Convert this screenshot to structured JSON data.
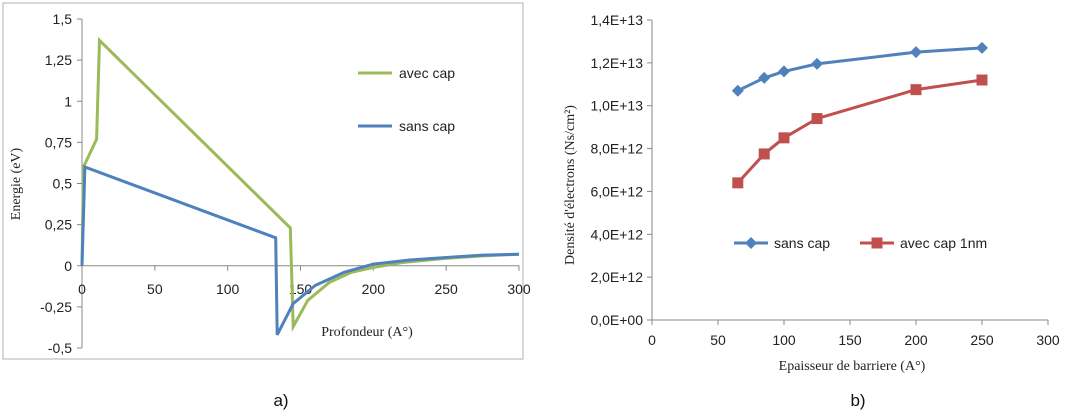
{
  "chart_data": [
    {
      "type": "line",
      "panel_label": "a)",
      "xlabel": "Profondeur (A°)",
      "ylabel": "Energie (eV)",
      "xlim": [
        0,
        300
      ],
      "ylim": [
        -0.5,
        1.5
      ],
      "x_ticks": [
        "0",
        "50",
        "100",
        "150",
        "200",
        "250",
        "300"
      ],
      "y_ticks": [
        "-0,5",
        "-0,25",
        "0",
        "0,25",
        "0,5",
        "0,75",
        "1",
        "1,25",
        "1,5"
      ],
      "grid": false,
      "legend_position": "right",
      "series": [
        {
          "name": "avec cap",
          "color": "#9bbb59",
          "points": [
            [
              0,
              0
            ],
            [
              1,
              0.6
            ],
            [
              10,
              0.77
            ],
            [
              12,
              1.37
            ],
            [
              143,
              0.23
            ],
            [
              145,
              -0.37
            ],
            [
              155,
              -0.21
            ],
            [
              170,
              -0.1
            ],
            [
              185,
              -0.04
            ],
            [
              200,
              -0.01
            ],
            [
              220,
              0.02
            ],
            [
              250,
              0.045
            ],
            [
              275,
              0.06
            ],
            [
              300,
              0.07
            ]
          ]
        },
        {
          "name": "sans cap",
          "color": "#4f81bd",
          "points": [
            [
              0,
              0
            ],
            [
              2,
              0.6
            ],
            [
              133,
              0.17
            ],
            [
              134,
              -0.42
            ],
            [
              145,
              -0.23
            ],
            [
              160,
              -0.12
            ],
            [
              180,
              -0.04
            ],
            [
              200,
              0.01
            ],
            [
              225,
              0.035
            ],
            [
              250,
              0.05
            ],
            [
              275,
              0.065
            ],
            [
              300,
              0.07
            ]
          ]
        }
      ]
    },
    {
      "type": "line",
      "panel_label": "b)",
      "xlabel": "Epaisseur de barriere (A°)",
      "ylabel": "Densité d'électrons (Ns/cm²)",
      "xlim": [
        0,
        300
      ],
      "ylim": [
        0,
        14000000000000.0
      ],
      "x_ticks": [
        "0",
        "50",
        "100",
        "150",
        "200",
        "250",
        "300"
      ],
      "y_ticks": [
        "0,0E+00",
        "2,0E+12",
        "4,0E+12",
        "6,0E+12",
        "8,0E+12",
        "1,0E+13",
        "1,2E+13",
        "1,4E+13"
      ],
      "grid": false,
      "legend_position": "bottom",
      "series": [
        {
          "name": "sans cap",
          "color": "#4f81bd",
          "marker": "diamond",
          "x": [
            65,
            85,
            100,
            125,
            200,
            250
          ],
          "y": [
            10700000000000.0,
            11300000000000.0,
            11600000000000.0,
            11950000000000.0,
            12500000000000.0,
            12700000000000.0
          ]
        },
        {
          "name": "avec cap 1nm",
          "color": "#c0504d",
          "marker": "square",
          "x": [
            65,
            85,
            100,
            125,
            200,
            250
          ],
          "y": [
            6400000000000.0,
            7750000000000.0,
            8500000000000.0,
            9400000000000.0,
            10750000000000.0,
            11200000000000.0
          ]
        }
      ]
    }
  ]
}
